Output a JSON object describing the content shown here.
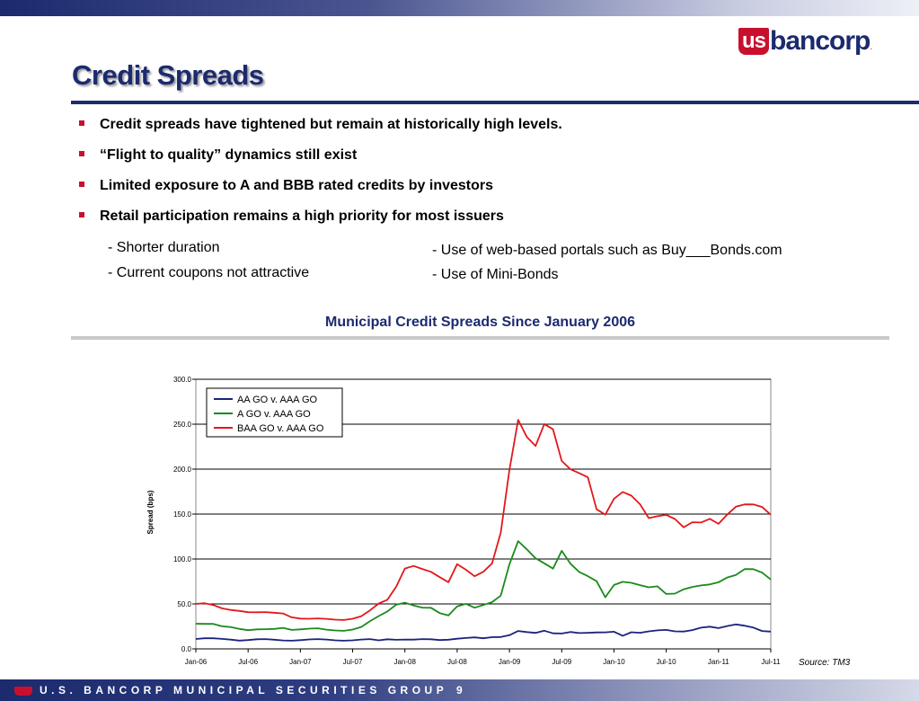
{
  "brand": {
    "logo_us": "us",
    "logo_name": "bancorp",
    "logo_mark": ".",
    "footer": "U.S. BANCORP MUNICIPAL SECURITIES GROUP",
    "page_number": "9",
    "colors": {
      "navy": "#1c2a6e",
      "red": "#c8102e"
    }
  },
  "slide": {
    "title": "Credit Spreads",
    "bullets": [
      "Credit spreads have tightened but remain at historically high levels.",
      "“Flight to quality” dynamics still exist",
      "Limited exposure to A and BBB rated credits by investors",
      "Retail participation remains a high priority for most issuers"
    ],
    "sub_left": [
      "- Shorter duration",
      "- Current coupons not attractive"
    ],
    "sub_right": [
      "- Use of web-based portals such as Buy___Bonds.com",
      "- Use of Mini-Bonds"
    ],
    "source": "Source:  TM3"
  },
  "chart_data": {
    "type": "line",
    "title": "Municipal Credit Spreads Since January 2006",
    "xlabel": "",
    "ylabel": "Spread (bps)",
    "ylim": [
      0,
      300
    ],
    "yticks": [
      "0.0",
      "50.0",
      "100.0",
      "150.0",
      "200.0",
      "250.0",
      "300.0"
    ],
    "xticks": [
      "Jan-06",
      "Jul-06",
      "Jan-07",
      "Jul-07",
      "Jan-08",
      "Jul-08",
      "Jan-09",
      "Jul-09",
      "Jan-10",
      "Jul-10",
      "Jan-11",
      "Jul-11"
    ],
    "grid": "horizontal",
    "legend_position": "top-left",
    "x_months": [
      0,
      1,
      2,
      3,
      4,
      5,
      6,
      7,
      8,
      9,
      10,
      11,
      12,
      13,
      14,
      15,
      16,
      17,
      18,
      19,
      20,
      21,
      22,
      23,
      24,
      25,
      26,
      27,
      28,
      29,
      30,
      31,
      32,
      33,
      34,
      35,
      36,
      37,
      38,
      39,
      40,
      41,
      42,
      43,
      44,
      45,
      46,
      47,
      48,
      49,
      50,
      51,
      52,
      53,
      54,
      55,
      56,
      57,
      58,
      59,
      60,
      61,
      62,
      63,
      64,
      65,
      66
    ],
    "series": [
      {
        "name": "AA GO v. AAA GO",
        "color": "#1a237e",
        "values": [
          11,
          11,
          11,
          11,
          11,
          10,
          10,
          10,
          10,
          10,
          10,
          10,
          10,
          10,
          10,
          10,
          10,
          10,
          10,
          10,
          10,
          9,
          11,
          11,
          11,
          10,
          10,
          10,
          10,
          11,
          12,
          12,
          12,
          11,
          13,
          14,
          16,
          20,
          18,
          17,
          20,
          18,
          18,
          19,
          17,
          17,
          18,
          19,
          20,
          15,
          18,
          17,
          19,
          21,
          22,
          20,
          19,
          20,
          23,
          25,
          24,
          26,
          27,
          25,
          23,
          20,
          20
        ]
      },
      {
        "name": "A GO v. AAA GO",
        "color": "#1b8a1b",
        "values": [
          28,
          27,
          27,
          25,
          25,
          23,
          21,
          21,
          21,
          22,
          24,
          22,
          22,
          22,
          22,
          21,
          21,
          21,
          22,
          24,
          30,
          36,
          42,
          50,
          52,
          48,
          45,
          45,
          40,
          38,
          48,
          50,
          45,
          48,
          52,
          60,
          95,
          120,
          110,
          100,
          95,
          90,
          110,
          95,
          85,
          80,
          75,
          58,
          72,
          75,
          73,
          70,
          68,
          70,
          62,
          62,
          66,
          68,
          70,
          72,
          75,
          80,
          82,
          88,
          88,
          85,
          78
        ]
      },
      {
        "name": "BAA GO v. AAA GO",
        "color": "#e3171b",
        "values": [
          50,
          50,
          48,
          45,
          44,
          43,
          41,
          40,
          40,
          40,
          40,
          36,
          34,
          33,
          33,
          33,
          33,
          33,
          34,
          36,
          42,
          50,
          55,
          70,
          90,
          92,
          88,
          85,
          80,
          75,
          95,
          88,
          80,
          85,
          95,
          130,
          200,
          255,
          235,
          225,
          250,
          245,
          210,
          200,
          195,
          190,
          155,
          150,
          168,
          175,
          170,
          160,
          145,
          148,
          150,
          145,
          135,
          140,
          140,
          145,
          140,
          150,
          158,
          160,
          160,
          158,
          150
        ]
      }
    ]
  }
}
